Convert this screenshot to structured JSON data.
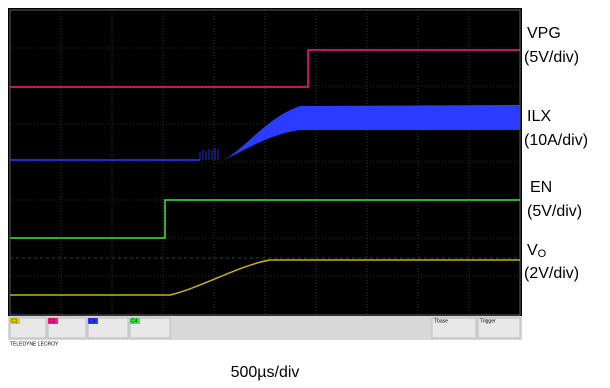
{
  "traces": [
    {
      "name": "VPG",
      "scale": "(5V/div)"
    },
    {
      "name": "ILX",
      "scale": "(10A/div)"
    },
    {
      "name": "EN",
      "scale": "(5V/div)"
    },
    {
      "name": {
        "main": "V",
        "sub": "O"
      },
      "scale": "(2V/div)"
    }
  ],
  "timebase": "500µs/div",
  "status": {
    "channels": [
      "C1",
      "C2",
      "C3",
      "C4"
    ],
    "brand": "TELEDYNE LECROY",
    "tbase": "Tbase",
    "trigger": "Trigger"
  }
}
